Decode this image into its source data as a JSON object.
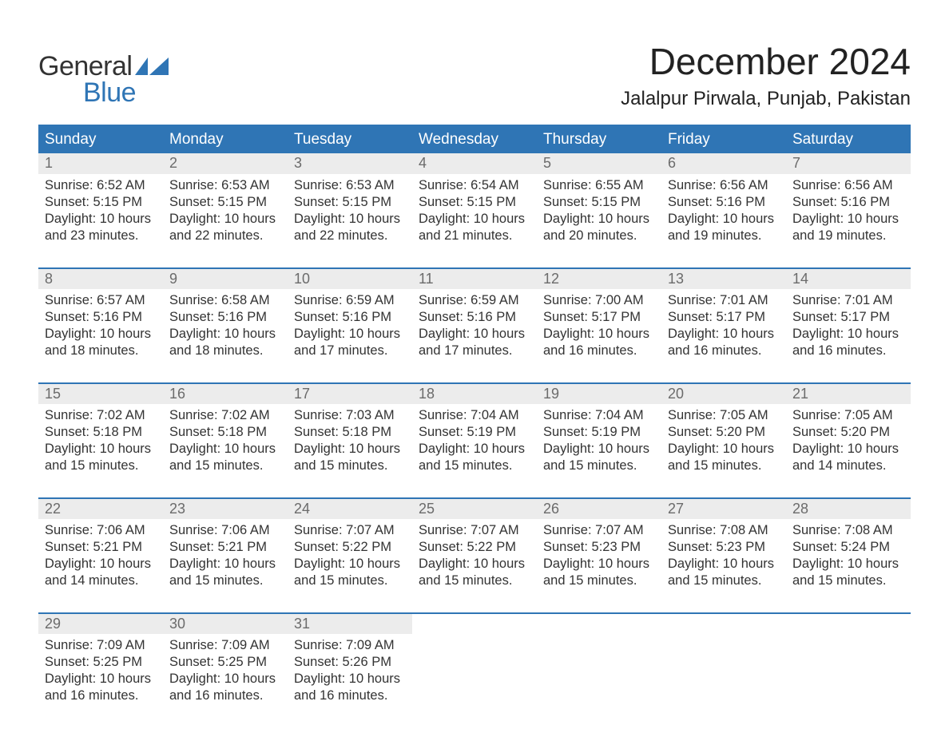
{
  "logo": {
    "word1": "General",
    "word2": "Blue",
    "brand_color": "#2f75b5"
  },
  "title": "December 2024",
  "location": "Jalalpur Pirwala, Punjab, Pakistan",
  "calendar": {
    "header_bg": "#2f75b5",
    "header_text": "#ffffff",
    "daynum_bg": "#ececec",
    "daynum_text": "#6b6b6b",
    "body_text": "#333333",
    "rule_color": "#2f75b5",
    "font_family": "Arial",
    "header_fontsize": 19,
    "daynum_fontsize": 18,
    "cell_fontsize": 16.5,
    "columns": [
      "Sunday",
      "Monday",
      "Tuesday",
      "Wednesday",
      "Thursday",
      "Friday",
      "Saturday"
    ],
    "weeks": [
      [
        {
          "d": "1",
          "sr": "Sunrise: 6:52 AM",
          "ss": "Sunset: 5:15 PM",
          "dl1": "Daylight: 10 hours",
          "dl2": "and 23 minutes."
        },
        {
          "d": "2",
          "sr": "Sunrise: 6:53 AM",
          "ss": "Sunset: 5:15 PM",
          "dl1": "Daylight: 10 hours",
          "dl2": "and 22 minutes."
        },
        {
          "d": "3",
          "sr": "Sunrise: 6:53 AM",
          "ss": "Sunset: 5:15 PM",
          "dl1": "Daylight: 10 hours",
          "dl2": "and 22 minutes."
        },
        {
          "d": "4",
          "sr": "Sunrise: 6:54 AM",
          "ss": "Sunset: 5:15 PM",
          "dl1": "Daylight: 10 hours",
          "dl2": "and 21 minutes."
        },
        {
          "d": "5",
          "sr": "Sunrise: 6:55 AM",
          "ss": "Sunset: 5:15 PM",
          "dl1": "Daylight: 10 hours",
          "dl2": "and 20 minutes."
        },
        {
          "d": "6",
          "sr": "Sunrise: 6:56 AM",
          "ss": "Sunset: 5:16 PM",
          "dl1": "Daylight: 10 hours",
          "dl2": "and 19 minutes."
        },
        {
          "d": "7",
          "sr": "Sunrise: 6:56 AM",
          "ss": "Sunset: 5:16 PM",
          "dl1": "Daylight: 10 hours",
          "dl2": "and 19 minutes."
        }
      ],
      [
        {
          "d": "8",
          "sr": "Sunrise: 6:57 AM",
          "ss": "Sunset: 5:16 PM",
          "dl1": "Daylight: 10 hours",
          "dl2": "and 18 minutes."
        },
        {
          "d": "9",
          "sr": "Sunrise: 6:58 AM",
          "ss": "Sunset: 5:16 PM",
          "dl1": "Daylight: 10 hours",
          "dl2": "and 18 minutes."
        },
        {
          "d": "10",
          "sr": "Sunrise: 6:59 AM",
          "ss": "Sunset: 5:16 PM",
          "dl1": "Daylight: 10 hours",
          "dl2": "and 17 minutes."
        },
        {
          "d": "11",
          "sr": "Sunrise: 6:59 AM",
          "ss": "Sunset: 5:16 PM",
          "dl1": "Daylight: 10 hours",
          "dl2": "and 17 minutes."
        },
        {
          "d": "12",
          "sr": "Sunrise: 7:00 AM",
          "ss": "Sunset: 5:17 PM",
          "dl1": "Daylight: 10 hours",
          "dl2": "and 16 minutes."
        },
        {
          "d": "13",
          "sr": "Sunrise: 7:01 AM",
          "ss": "Sunset: 5:17 PM",
          "dl1": "Daylight: 10 hours",
          "dl2": "and 16 minutes."
        },
        {
          "d": "14",
          "sr": "Sunrise: 7:01 AM",
          "ss": "Sunset: 5:17 PM",
          "dl1": "Daylight: 10 hours",
          "dl2": "and 16 minutes."
        }
      ],
      [
        {
          "d": "15",
          "sr": "Sunrise: 7:02 AM",
          "ss": "Sunset: 5:18 PM",
          "dl1": "Daylight: 10 hours",
          "dl2": "and 15 minutes."
        },
        {
          "d": "16",
          "sr": "Sunrise: 7:02 AM",
          "ss": "Sunset: 5:18 PM",
          "dl1": "Daylight: 10 hours",
          "dl2": "and 15 minutes."
        },
        {
          "d": "17",
          "sr": "Sunrise: 7:03 AM",
          "ss": "Sunset: 5:18 PM",
          "dl1": "Daylight: 10 hours",
          "dl2": "and 15 minutes."
        },
        {
          "d": "18",
          "sr": "Sunrise: 7:04 AM",
          "ss": "Sunset: 5:19 PM",
          "dl1": "Daylight: 10 hours",
          "dl2": "and 15 minutes."
        },
        {
          "d": "19",
          "sr": "Sunrise: 7:04 AM",
          "ss": "Sunset: 5:19 PM",
          "dl1": "Daylight: 10 hours",
          "dl2": "and 15 minutes."
        },
        {
          "d": "20",
          "sr": "Sunrise: 7:05 AM",
          "ss": "Sunset: 5:20 PM",
          "dl1": "Daylight: 10 hours",
          "dl2": "and 15 minutes."
        },
        {
          "d": "21",
          "sr": "Sunrise: 7:05 AM",
          "ss": "Sunset: 5:20 PM",
          "dl1": "Daylight: 10 hours",
          "dl2": "and 14 minutes."
        }
      ],
      [
        {
          "d": "22",
          "sr": "Sunrise: 7:06 AM",
          "ss": "Sunset: 5:21 PM",
          "dl1": "Daylight: 10 hours",
          "dl2": "and 14 minutes."
        },
        {
          "d": "23",
          "sr": "Sunrise: 7:06 AM",
          "ss": "Sunset: 5:21 PM",
          "dl1": "Daylight: 10 hours",
          "dl2": "and 15 minutes."
        },
        {
          "d": "24",
          "sr": "Sunrise: 7:07 AM",
          "ss": "Sunset: 5:22 PM",
          "dl1": "Daylight: 10 hours",
          "dl2": "and 15 minutes."
        },
        {
          "d": "25",
          "sr": "Sunrise: 7:07 AM",
          "ss": "Sunset: 5:22 PM",
          "dl1": "Daylight: 10 hours",
          "dl2": "and 15 minutes."
        },
        {
          "d": "26",
          "sr": "Sunrise: 7:07 AM",
          "ss": "Sunset: 5:23 PM",
          "dl1": "Daylight: 10 hours",
          "dl2": "and 15 minutes."
        },
        {
          "d": "27",
          "sr": "Sunrise: 7:08 AM",
          "ss": "Sunset: 5:23 PM",
          "dl1": "Daylight: 10 hours",
          "dl2": "and 15 minutes."
        },
        {
          "d": "28",
          "sr": "Sunrise: 7:08 AM",
          "ss": "Sunset: 5:24 PM",
          "dl1": "Daylight: 10 hours",
          "dl2": "and 15 minutes."
        }
      ],
      [
        {
          "d": "29",
          "sr": "Sunrise: 7:09 AM",
          "ss": "Sunset: 5:25 PM",
          "dl1": "Daylight: 10 hours",
          "dl2": "and 16 minutes."
        },
        {
          "d": "30",
          "sr": "Sunrise: 7:09 AM",
          "ss": "Sunset: 5:25 PM",
          "dl1": "Daylight: 10 hours",
          "dl2": "and 16 minutes."
        },
        {
          "d": "31",
          "sr": "Sunrise: 7:09 AM",
          "ss": "Sunset: 5:26 PM",
          "dl1": "Daylight: 10 hours",
          "dl2": "and 16 minutes."
        },
        null,
        null,
        null,
        null
      ]
    ]
  }
}
